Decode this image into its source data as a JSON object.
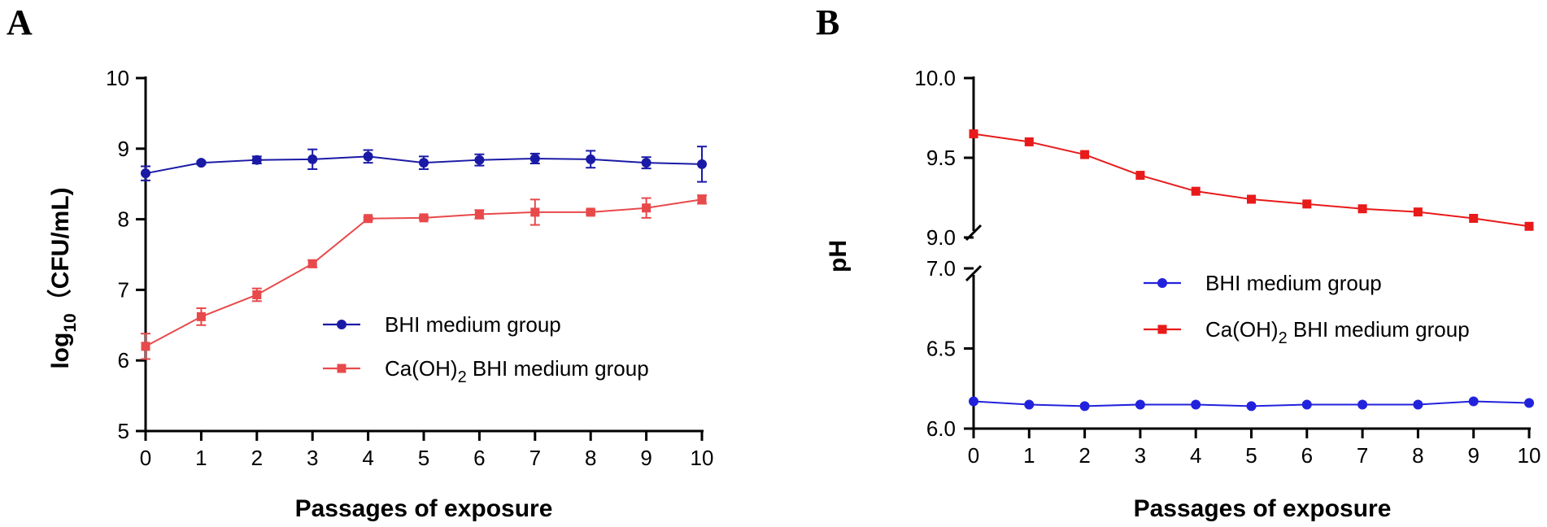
{
  "figure": {
    "panel_a_label": "A",
    "panel_b_label": "B"
  },
  "chart_data": [
    {
      "type": "line",
      "panel": "A",
      "title": "",
      "xlabel": "Passages of exposure",
      "ylabel_main": "log",
      "ylabel_sub": "10",
      "ylabel_rest": "（CFU/mL)",
      "x": [
        0,
        1,
        2,
        3,
        4,
        5,
        6,
        7,
        8,
        9,
        10
      ],
      "xticks": [
        "0",
        "1",
        "2",
        "3",
        "4",
        "5",
        "6",
        "7",
        "8",
        "9",
        "10"
      ],
      "yticks": [
        "5",
        "6",
        "7",
        "8",
        "9",
        "10"
      ],
      "ylim": [
        5,
        10
      ],
      "xlim": [
        0,
        10
      ],
      "legend_position": "center-right",
      "series": [
        {
          "name": "BHI medium group",
          "legend_parts": [
            "BHI medium group"
          ],
          "color": "#1a1aa6",
          "marker": "circle",
          "values": [
            8.65,
            8.8,
            8.84,
            8.85,
            8.89,
            8.8,
            8.84,
            8.86,
            8.85,
            8.8,
            8.78
          ],
          "errors": [
            0.1,
            0.02,
            0.05,
            0.14,
            0.09,
            0.09,
            0.08,
            0.07,
            0.12,
            0.08,
            0.25
          ]
        },
        {
          "name": "Ca(OH)2 BHI medium group",
          "legend_parts": [
            "Ca(OH)",
            "2",
            " BHI medium group"
          ],
          "color": "#e8494a",
          "marker": "square",
          "values": [
            6.2,
            6.62,
            6.93,
            7.37,
            8.01,
            8.02,
            8.07,
            8.1,
            8.1,
            8.16,
            8.28
          ],
          "errors": [
            0.18,
            0.12,
            0.09,
            0.05,
            0.02,
            0.02,
            0.06,
            0.18,
            0.03,
            0.14,
            0.06
          ]
        }
      ]
    },
    {
      "type": "line",
      "panel": "B",
      "title": "",
      "xlabel": "Passages of exposure",
      "ylabel": "pH",
      "x": [
        0,
        1,
        2,
        3,
        4,
        5,
        6,
        7,
        8,
        9,
        10
      ],
      "xticks": [
        "0",
        "1",
        "2",
        "3",
        "4",
        "5",
        "6",
        "7",
        "8",
        "9",
        "10"
      ],
      "broken_axis": true,
      "upper_segment": {
        "ylim": [
          9.0,
          10.0
        ],
        "yticks": [
          "9.0",
          "9.5",
          "10.0"
        ]
      },
      "lower_segment": {
        "ylim": [
          6.0,
          7.0
        ],
        "yticks": [
          "6.0",
          "6.5",
          "7.0"
        ]
      },
      "xlim": [
        0,
        10
      ],
      "legend_position": "center-right",
      "series": [
        {
          "name": "BHI medium group",
          "legend_parts": [
            "BHI medium group"
          ],
          "color": "#2222dd",
          "marker": "circle",
          "values": [
            6.17,
            6.15,
            6.14,
            6.15,
            6.15,
            6.14,
            6.15,
            6.15,
            6.15,
            6.17,
            6.16
          ]
        },
        {
          "name": "Ca(OH)2 BHI medium group",
          "legend_parts": [
            "Ca(OH)",
            "2",
            " BHI medium group"
          ],
          "color": "#e81a1a",
          "marker": "square",
          "values": [
            9.65,
            9.6,
            9.52,
            9.39,
            9.29,
            9.24,
            9.21,
            9.18,
            9.16,
            9.12,
            9.07
          ]
        }
      ]
    }
  ]
}
